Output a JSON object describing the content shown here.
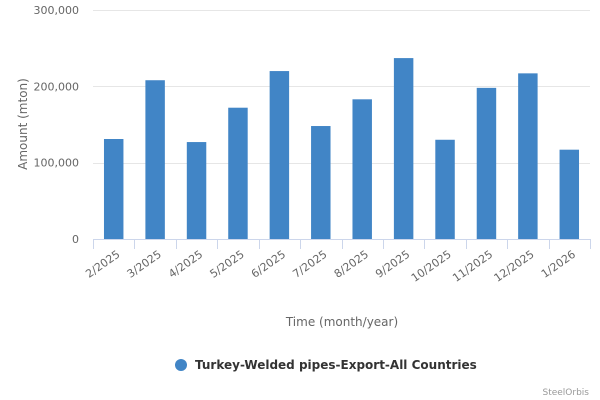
{
  "chart_data": {
    "type": "bar",
    "categories": [
      "2/2025",
      "3/2025",
      "4/2025",
      "5/2025",
      "6/2025",
      "7/2025",
      "8/2025",
      "9/2025",
      "10/2025",
      "11/2025",
      "12/2025",
      "1/2026"
    ],
    "series": [
      {
        "name": "Turkey-Welded pipes-Export-All Countries",
        "color": "#4185c6",
        "values": [
          131000,
          208000,
          127000,
          172000,
          220000,
          148000,
          183000,
          237000,
          130000,
          198000,
          217000,
          117000
        ]
      }
    ],
    "yticks": [
      0,
      100000,
      200000,
      300000
    ],
    "ytick_labels": [
      "0",
      "100,000",
      "200,000",
      "300,000"
    ],
    "ylim": [
      0,
      300000
    ],
    "xlabel": "Time (month/year)",
    "ylabel": "Amount (mton)",
    "grid": true,
    "legend": "bottom-center"
  },
  "credits": "SteelOrbis"
}
